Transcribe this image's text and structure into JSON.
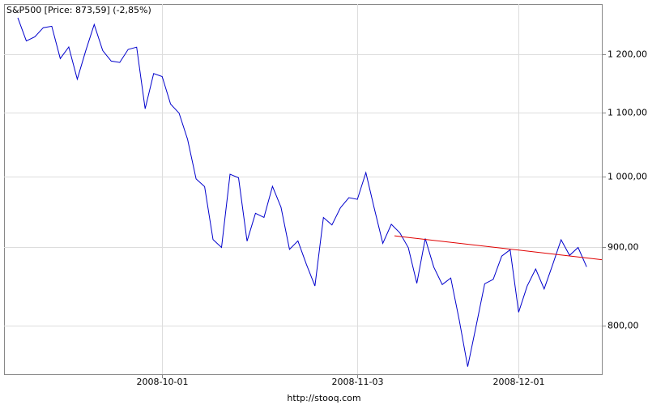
{
  "chart_data": {
    "type": "line",
    "title": "S&P500 [Price: 873,59] (-2,85%)",
    "footer": "http://stooq.com",
    "categories": [
      null,
      null,
      null,
      null,
      null,
      null,
      null,
      null,
      null,
      null,
      null,
      null,
      null,
      null,
      null,
      null,
      null,
      "2008-10-01",
      null,
      null,
      null,
      null,
      null,
      null,
      null,
      null,
      null,
      null,
      null,
      null,
      null,
      null,
      null,
      null,
      null,
      null,
      null,
      null,
      null,
      null,
      "2008-11-03",
      null,
      null,
      null,
      null,
      null,
      null,
      null,
      null,
      null,
      null,
      null,
      null,
      null,
      null,
      null,
      null,
      null,
      null,
      "2008-12-01",
      null,
      null,
      null,
      null,
      null,
      null,
      null,
      null
    ],
    "values": [
      1267.79,
      1224.51,
      1232.04,
      1249.05,
      1251.7,
      1192.7,
      1213.6,
      1156.39,
      1206.51,
      1255.08,
      1207.09,
      1188.22,
      1185.87,
      1209.18,
      1213.27,
      1106.39,
      1166.36,
      1161.06,
      1114.28,
      1099.23,
      1056.89,
      996.23,
      984.94,
      909.92,
      899.22,
      1003.35,
      998.01,
      907.84,
      946.43,
      940.55,
      985.4,
      955.05,
      896.78,
      908.11,
      876.77,
      848.92,
      940.51,
      930.09,
      954.09,
      968.75,
      966.3,
      1005.75,
      952.77,
      904.88,
      930.99,
      919.21,
      898.95,
      852.3,
      911.29,
      873.29,
      850.75,
      859.12,
      806.58,
      752.44,
      800.03,
      851.81,
      857.39,
      887.68,
      896.24,
      816.21,
      848.81,
      870.74,
      845.22,
      876.07,
      909.7,
      888.67,
      899.24,
      873.59
    ],
    "color": "#0000cc",
    "trendline": {
      "values": [
        915,
        883
      ],
      "color": "#e00000"
    },
    "ylim": [
      744,
      1294
    ],
    "log_scale": true,
    "grid": true,
    "yticks": [
      {
        "value": 800,
        "label": "800,00"
      },
      {
        "value": 900,
        "label": "900,00"
      },
      {
        "value": 1000,
        "label": "1 000,00"
      },
      {
        "value": 1100,
        "label": "1 100,00"
      },
      {
        "value": 1200,
        "label": "1 200,00"
      }
    ]
  }
}
